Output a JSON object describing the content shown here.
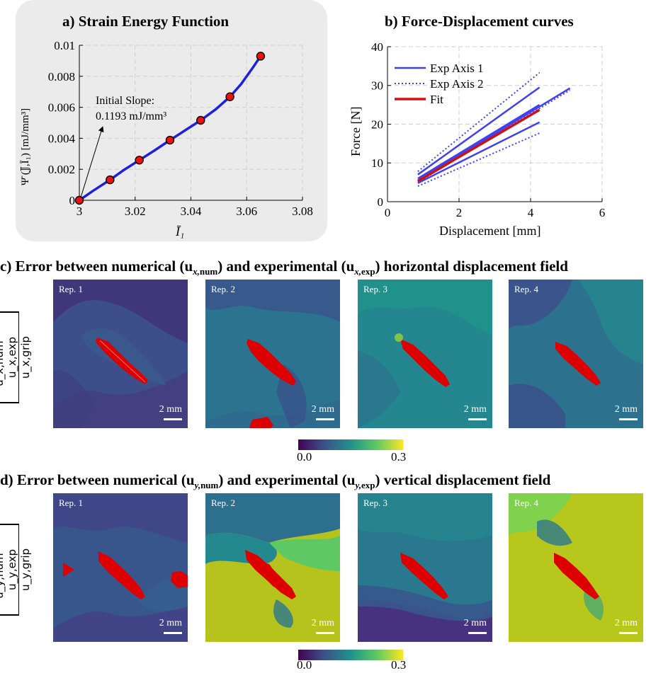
{
  "panel_a": {
    "title": "a) Strain Energy Function",
    "annotation_line1": "Initial Slope:",
    "annotation_line2": "0.1193 mJ/mm³",
    "xlabel": "Ī₁",
    "ylabel": "Ψ̄̄ (𝕁,Ī₁) [mJ/mm³]"
  },
  "panel_b": {
    "title": "b) Force-Displacement curves",
    "xlabel": "Displacement [mm]",
    "ylabel": "Force [N]",
    "legend": [
      "Exp Axis 1",
      "Exp Axis 2",
      "Fit"
    ]
  },
  "panel_c": {
    "title": "c) Error between numerical (u_x,num) and experimental (u_x,exp) horizontal displacement field",
    "title_parts": [
      "c) Error between numerical (u",
      "x,",
      "num",
      ") and experimental (u",
      "x,",
      "exp",
      ") horizontal displacement field"
    ],
    "ylabel_num": "u_x,num − u_x,exp",
    "ylabel_den": "u_x,grip",
    "reps": [
      "Rep. 1",
      "Rep. 2",
      "Rep. 3",
      "Rep. 4"
    ],
    "scalebar": "2 mm",
    "colorbar": {
      "min_label": "0.0",
      "max_label": "0.3",
      "min": 0.0,
      "max": 0.3
    }
  },
  "panel_d": {
    "title": "d) Error between numerical (u_y,num) and experimental (u_y,exp) vertical displacement field",
    "title_parts": [
      "d) Error between numerical (u",
      "y,",
      "num",
      ") and experimental (u",
      "y,",
      "exp",
      ") vertical displacement field"
    ],
    "ylabel_num": "u_y,num − u_y,exp",
    "ylabel_den": "u_y,grip",
    "reps": [
      "Rep. 1",
      "Rep. 2",
      "Rep. 3",
      "Rep. 4"
    ],
    "scalebar": "2 mm",
    "colorbar": {
      "min_label": "0.0",
      "max_label": "0.3",
      "min": 0.0,
      "max": 0.3
    }
  },
  "colors": {
    "blue": "#1f1fe0",
    "mid_blue": "#4040ee",
    "red": "#d01010",
    "marker_red": "#ee1111",
    "panel_bg": "#ebebeb",
    "field_red": "#dd0000"
  },
  "chart_data": [
    {
      "type": "line",
      "title": "a) Strain Energy Function",
      "xlabel": "Ī₁",
      "ylabel": "Ψ̄̄ (𝕁,Ī₁) [mJ/mm³]",
      "xlim": [
        3,
        3.08
      ],
      "ylim": [
        0,
        0.01
      ],
      "xticks": [
        3,
        3.02,
        3.04,
        3.06,
        3.08
      ],
      "xtick_labels": [
        "3",
        "3.02",
        "3.04",
        "3.06",
        "3.08"
      ],
      "yticks": [
        0,
        0.002,
        0.004,
        0.006,
        0.008,
        0.01
      ],
      "ytick_labels": [
        "0",
        "0.002",
        "0.004",
        "0.006",
        "0.008",
        "0.01"
      ],
      "grid": true,
      "curve": {
        "x": [
          3.0,
          3.005,
          3.011,
          3.016,
          3.0215,
          3.027,
          3.0325,
          3.038,
          3.0435,
          3.049,
          3.054,
          3.058,
          3.062,
          3.065
        ],
        "y": [
          0.0,
          0.00062,
          0.00132,
          0.00196,
          0.00259,
          0.00322,
          0.00388,
          0.00452,
          0.00516,
          0.00588,
          0.00668,
          0.0075,
          0.0085,
          0.0093
        ]
      },
      "markers": {
        "x": [
          3.0,
          3.011,
          3.0215,
          3.0325,
          3.0435,
          3.054,
          3.065
        ],
        "y": [
          0.0,
          0.00132,
          0.00259,
          0.00388,
          0.00516,
          0.00668,
          0.0093
        ]
      }
    },
    {
      "type": "line",
      "title": "b) Force-Displacement curves",
      "xlabel": "Displacement [mm]",
      "ylabel": "Force [N]",
      "xlim": [
        0,
        6
      ],
      "ylim": [
        0,
        40
      ],
      "xticks": [
        0,
        2,
        4,
        6
      ],
      "xtick_labels": [
        "0",
        "2",
        "4",
        "6"
      ],
      "yticks": [
        0,
        10,
        20,
        30,
        40
      ],
      "ytick_labels": [
        "0",
        "10",
        "20",
        "30",
        "40"
      ],
      "grid": true,
      "legend_position": "top-left",
      "series": [
        {
          "name": "Exp Axis 1",
          "style": "solid",
          "x": [
            0.85,
            4.25
          ],
          "y": [
            7.0,
            29.5
          ]
        },
        {
          "name": "",
          "style": "solid",
          "x": [
            0.85,
            4.25
          ],
          "y": [
            6.0,
            25.0
          ]
        },
        {
          "name": "",
          "style": "solid",
          "x": [
            0.85,
            4.25
          ],
          "y": [
            4.8,
            20.5
          ]
        },
        {
          "name": "",
          "style": "solid",
          "x": [
            0.85,
            5.1
          ],
          "y": [
            5.5,
            29.3
          ]
        },
        {
          "name": "Exp Axis 2",
          "style": "dotted",
          "x": [
            0.85,
            4.25
          ],
          "y": [
            7.8,
            33.3
          ]
        },
        {
          "name": "",
          "style": "dotted",
          "x": [
            0.85,
            4.25
          ],
          "y": [
            5.2,
            24.0
          ]
        },
        {
          "name": "",
          "style": "dotted",
          "x": [
            0.85,
            4.25
          ],
          "y": [
            4.0,
            17.7
          ]
        },
        {
          "name": "",
          "style": "dotted",
          "x": [
            0.85,
            5.1
          ],
          "y": [
            5.0,
            28.8
          ]
        },
        {
          "name": "Fit",
          "style": "solid-thick",
          "x": [
            0.85,
            4.25
          ],
          "y": [
            5.3,
            23.7
          ]
        }
      ]
    }
  ]
}
